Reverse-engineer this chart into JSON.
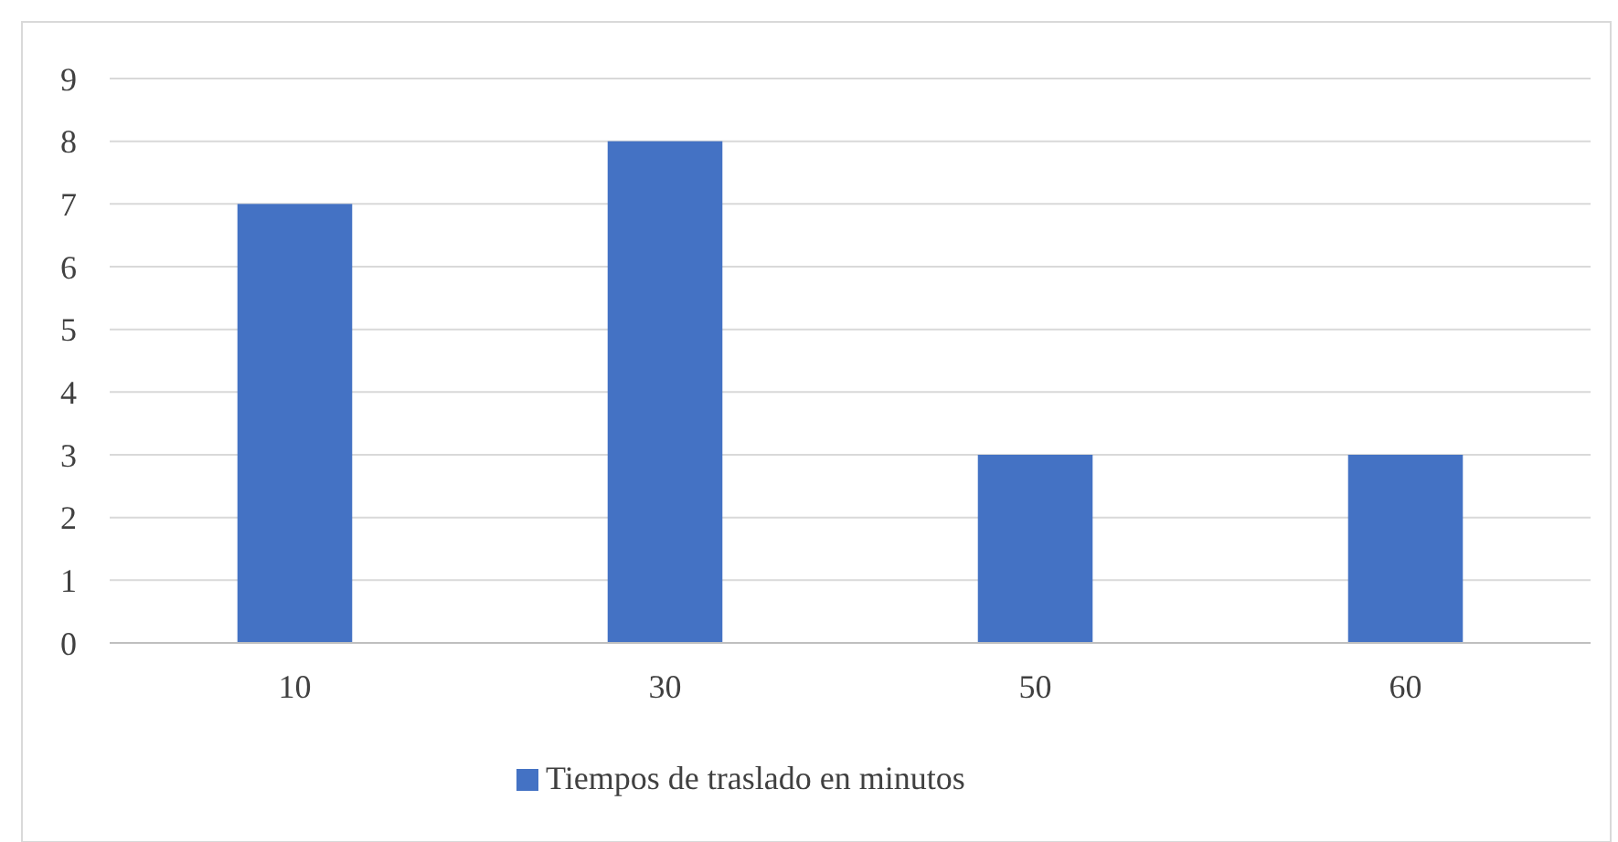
{
  "chart_data": {
    "type": "bar",
    "categories": [
      "10",
      "30",
      "50",
      "60"
    ],
    "series": [
      {
        "name": "Tiempos de traslado en minutos",
        "color": "#4472c4",
        "values": [
          7,
          8,
          3,
          3
        ]
      }
    ],
    "ylim": [
      0,
      9
    ],
    "yticks": [
      0,
      1,
      2,
      3,
      4,
      5,
      6,
      7,
      8,
      9
    ],
    "grid": "y",
    "legend": "bottom"
  }
}
